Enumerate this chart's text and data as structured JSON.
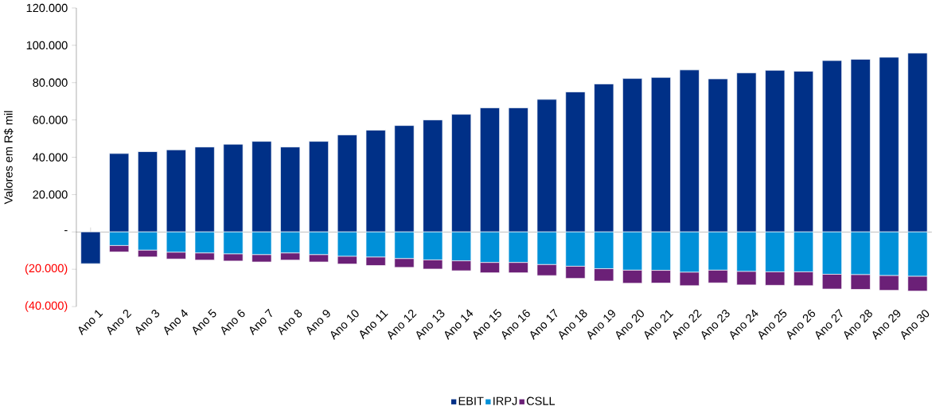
{
  "chart_data": {
    "type": "bar",
    "stacked": true,
    "ylabel": "Valores em R$ mil",
    "categories": [
      "Ano 1",
      "Ano 2",
      "Ano 3",
      "Ano 4",
      "Ano 5",
      "Ano 6",
      "Ano 7",
      "Ano 8",
      "Ano 9",
      "Ano 10",
      "Ano 11",
      "Ano 12",
      "Ano 13",
      "Ano 14",
      "Ano 15",
      "Ano 16",
      "Ano 17",
      "Ano 18",
      "Ano 19",
      "Ano 20",
      "Ano 21",
      "Ano 22",
      "Ano 23",
      "Ano 24",
      "Ano 25",
      "Ano 26",
      "Ano 27",
      "Ano 28",
      "Ano 29",
      "Ano 30"
    ],
    "series": [
      {
        "name": "EBIT",
        "color": "#003087",
        "values": [
          -17000,
          42000,
          43000,
          44000,
          45500,
          47000,
          48500,
          45500,
          48500,
          52000,
          54500,
          57000,
          60000,
          63000,
          66500,
          66500,
          71000,
          75000,
          79300,
          82200,
          82800,
          86800,
          82000,
          85200,
          86600,
          86100,
          91800,
          92500,
          93600,
          95800
        ]
      },
      {
        "name": "IRPJ",
        "color": "#0090d8",
        "values": [
          null,
          -7300,
          -9800,
          -10900,
          -11300,
          -11800,
          -12200,
          -11300,
          -12200,
          -13100,
          -13500,
          -14300,
          -15000,
          -15500,
          -16400,
          -16400,
          -17500,
          -18400,
          -19700,
          -20500,
          -20600,
          -21600,
          -20500,
          -21200,
          -21400,
          -21400,
          -22700,
          -22900,
          -23400,
          -23800
        ]
      },
      {
        "name": "CSLL",
        "color": "#6b2077",
        "values": [
          null,
          -3400,
          -3600,
          -3600,
          -3800,
          -3800,
          -3900,
          -3800,
          -3900,
          -4100,
          -4500,
          -4700,
          -4900,
          -5300,
          -5500,
          -5500,
          -5900,
          -6500,
          -6600,
          -7000,
          -6800,
          -7200,
          -6800,
          -7200,
          -7200,
          -7400,
          -7900,
          -7900,
          -7900,
          -7900
        ]
      }
    ],
    "ylim": [
      -40000,
      120000
    ],
    "yticks": [
      {
        "value": -40000,
        "label": "(40.000)"
      },
      {
        "value": -20000,
        "label": "(20.000)"
      },
      {
        "value": 0,
        "label": "-"
      },
      {
        "value": 20000,
        "label": "20.000"
      },
      {
        "value": 40000,
        "label": "40.000"
      },
      {
        "value": 60000,
        "label": "60.000"
      },
      {
        "value": 80000,
        "label": "80.000"
      },
      {
        "value": 100000,
        "label": "100.000"
      },
      {
        "value": 120000,
        "label": "120.000"
      }
    ],
    "legend": "bottom"
  }
}
